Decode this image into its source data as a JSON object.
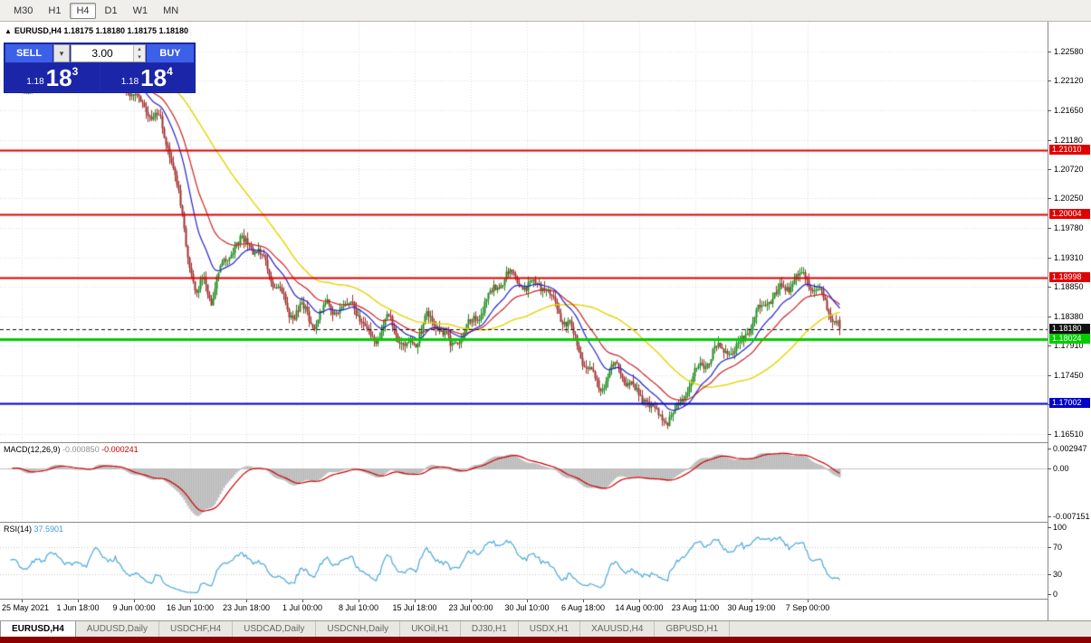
{
  "toolbar": {
    "timeframes": [
      {
        "label": "M30",
        "active": false
      },
      {
        "label": "H1",
        "active": false
      },
      {
        "label": "H4",
        "active": true
      },
      {
        "label": "D1",
        "active": false
      },
      {
        "label": "W1",
        "active": false
      },
      {
        "label": "MN",
        "active": false
      }
    ]
  },
  "chart_header": {
    "collapse_marker": "▲",
    "ohlc_readout": "EURUSD,H4 1.18175 1.18180 1.18175 1.18180"
  },
  "trade_panel": {
    "sell_label": "SELL",
    "buy_label": "BUY",
    "lot_value": "3.00",
    "dropdown_caret": "▾",
    "spin_up": "▴",
    "spin_down": "▾",
    "bid": {
      "prefix": "1.18",
      "big": "18",
      "sup": "3"
    },
    "ask": {
      "prefix": "1.18",
      "big": "18",
      "sup": "4"
    }
  },
  "price_axis_ticks": [
    "1.22580",
    "1.22120",
    "1.21650",
    "1.21180",
    "1.20720",
    "1.20250",
    "1.19780",
    "1.19310",
    "1.18850",
    "1.18380",
    "1.17910",
    "1.17450",
    "1.16980",
    "1.16510"
  ],
  "levels": [
    {
      "label": "1.21010",
      "price": 1.2101,
      "color": "#e00000",
      "width": 2,
      "style": "solid"
    },
    {
      "label": "1.20004",
      "price": 1.20004,
      "color": "#e00000",
      "width": 2,
      "style": "solid"
    },
    {
      "label": "1.18998",
      "price": 1.18998,
      "color": "#e00000",
      "width": 2,
      "style": "solid"
    },
    {
      "label": "1.18180",
      "price": 1.1818,
      "color": "#111111",
      "width": 1,
      "style": "dash"
    },
    {
      "label": "1.18024",
      "price": 1.18024,
      "color": "#00cc00",
      "width": 3,
      "style": "solid"
    },
    {
      "label": "1.17002",
      "price": 1.17002,
      "color": "#0000cc",
      "width": 2,
      "style": "solid"
    }
  ],
  "indicators": {
    "macd": {
      "name": "MACD(12,26,9)",
      "value_main": "-0.000850",
      "value_signal": "-0.000241",
      "axis": [
        {
          "label": "0.002947",
          "value": 0.002947
        },
        {
          "label": "0.00",
          "value": 0
        },
        {
          "label": "-0.007151",
          "value": -0.007151
        }
      ],
      "fast": 12,
      "slow": 26,
      "signal": 9
    },
    "rsi": {
      "name": "RSI(14)",
      "value": "37.5901",
      "axis": [
        {
          "label": "100",
          "value": 100
        },
        {
          "label": "70",
          "value": 70
        },
        {
          "label": "30",
          "value": 30
        },
        {
          "label": "0",
          "value": 0
        }
      ],
      "period": 14
    }
  },
  "time_axis": [
    "25 May 2021",
    "1 Jun 18:00",
    "9 Jun 00:00",
    "16 Jun 10:00",
    "23 Jun 18:00",
    "1 Jul 00:00",
    "8 Jul 10:00",
    "15 Jul 18:00",
    "23 Jul 00:00",
    "30 Jul 10:00",
    "6 Aug 18:00",
    "14 Aug 00:00",
    "23 Aug 11:00",
    "30 Aug 19:00",
    "7 Sep 00:00"
  ],
  "tabs": [
    {
      "label": "EURUSD,H4",
      "active": true
    },
    {
      "label": "AUDUSD,Daily",
      "active": false
    },
    {
      "label": "USDCHF,H4",
      "active": false
    },
    {
      "label": "USDCAD,Daily",
      "active": false
    },
    {
      "label": "USDCNH,Daily",
      "active": false
    },
    {
      "label": "UKOil,H1",
      "active": false
    },
    {
      "label": "DJ30,H1",
      "active": false
    },
    {
      "label": "USDX,H1",
      "active": false
    },
    {
      "label": "XAUUSD,H4",
      "active": false
    },
    {
      "label": "GBPUSD,H1",
      "active": false
    }
  ],
  "chart_data": {
    "type": "candlestick",
    "symbol": "EURUSD",
    "timeframe": "H4",
    "bars": 460,
    "last_price": 1.1818,
    "price_range_visible": [
      1.1651,
      1.2258
    ],
    "price_anchors": [
      [
        0,
        1.2225
      ],
      [
        10,
        1.2198
      ],
      [
        22,
        1.2232
      ],
      [
        36,
        1.2212
      ],
      [
        50,
        1.2242
      ],
      [
        62,
        1.221
      ],
      [
        74,
        1.218
      ],
      [
        84,
        1.214
      ],
      [
        90,
        1.2085
      ],
      [
        95,
        1.201
      ],
      [
        100,
        1.1925
      ],
      [
        104,
        1.1875
      ],
      [
        108,
        1.19
      ],
      [
        112,
        1.1865
      ],
      [
        118,
        1.1915
      ],
      [
        125,
        1.195
      ],
      [
        132,
        1.1962
      ],
      [
        139,
        1.1935
      ],
      [
        147,
        1.1885
      ],
      [
        155,
        1.1842
      ],
      [
        162,
        1.1856
      ],
      [
        169,
        1.1828
      ],
      [
        176,
        1.185
      ],
      [
        183,
        1.1843
      ],
      [
        190,
        1.1866
      ],
      [
        197,
        1.182
      ],
      [
        204,
        1.18
      ],
      [
        211,
        1.1833
      ],
      [
        218,
        1.1788
      ],
      [
        225,
        1.1806
      ],
      [
        231,
        1.1833
      ],
      [
        238,
        1.1818
      ],
      [
        244,
        1.1788
      ],
      [
        250,
        1.1812
      ],
      [
        257,
        1.1836
      ],
      [
        263,
        1.1852
      ],
      [
        269,
        1.188
      ],
      [
        275,
        1.1902
      ],
      [
        280,
        1.1908
      ],
      [
        286,
        1.1884
      ],
      [
        292,
        1.1894
      ],
      [
        298,
        1.1868
      ],
      [
        304,
        1.1846
      ],
      [
        310,
        1.1826
      ],
      [
        316,
        1.1782
      ],
      [
        321,
        1.1746
      ],
      [
        326,
        1.1722
      ],
      [
        331,
        1.174
      ],
      [
        336,
        1.1764
      ],
      [
        341,
        1.1744
      ],
      [
        346,
        1.172
      ],
      [
        351,
        1.1708
      ],
      [
        356,
        1.1686
      ],
      [
        361,
        1.167
      ],
      [
        366,
        1.1678
      ],
      [
        371,
        1.1706
      ],
      [
        377,
        1.1736
      ],
      [
        383,
        1.1758
      ],
      [
        389,
        1.1774
      ],
      [
        395,
        1.1788
      ],
      [
        400,
        1.1782
      ],
      [
        406,
        1.1808
      ],
      [
        412,
        1.183
      ],
      [
        418,
        1.1854
      ],
      [
        424,
        1.1872
      ],
      [
        429,
        1.1888
      ],
      [
        434,
        1.19
      ],
      [
        439,
        1.1904
      ],
      [
        444,
        1.1884
      ],
      [
        449,
        1.1864
      ],
      [
        453,
        1.185
      ],
      [
        456,
        1.1832
      ],
      [
        459,
        1.1818
      ]
    ],
    "moving_averages": [
      {
        "name": "fast",
        "period": 18,
        "color": "#2222cc"
      },
      {
        "name": "mid",
        "period": 34,
        "color": "#cc2222"
      },
      {
        "name": "slow",
        "period": 72,
        "color": "#e6d400"
      }
    ]
  },
  "colors": {
    "up_candle": "#1e8c1e",
    "down_candle": "#a03030",
    "macd_hist": "#b8b8b8",
    "macd_signal": "#cc0000",
    "rsi_line": "#4aa8dc",
    "grid": "#dedede"
  }
}
